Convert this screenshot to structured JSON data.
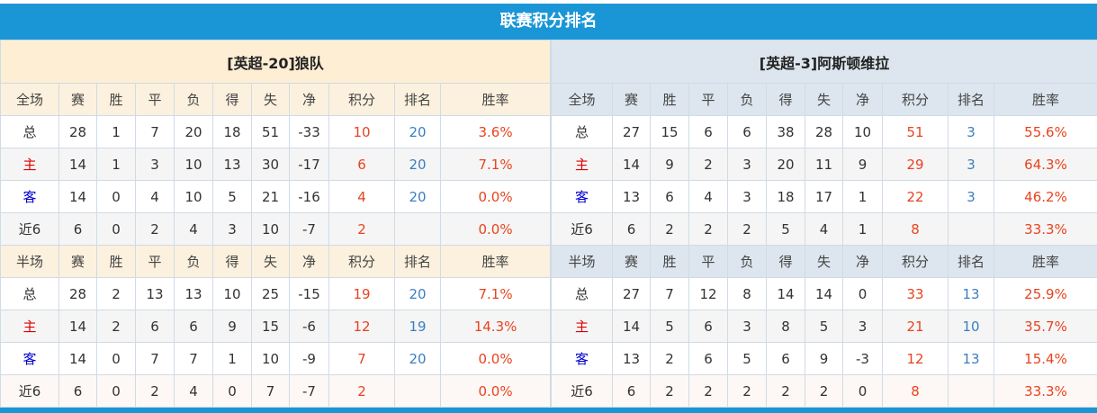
{
  "title": "联赛积分排名",
  "columns_full": [
    "全场",
    "赛",
    "胜",
    "平",
    "负",
    "得",
    "失",
    "净",
    "积分",
    "排名",
    "胜率"
  ],
  "columns_half": [
    "半场",
    "赛",
    "胜",
    "平",
    "负",
    "得",
    "失",
    "净",
    "积分",
    "排名",
    "胜率"
  ],
  "colors": {
    "accent": "#1a96d6",
    "points": "#e8431f",
    "rank": "#3a7fc1",
    "home": "#e00000",
    "away": "#0000d0"
  },
  "teams": [
    {
      "name": "[英超-20]狼队",
      "full": [
        [
          "总",
          "28",
          "1",
          "7",
          "20",
          "18",
          "51",
          "-33",
          "10",
          "20",
          "3.6%"
        ],
        [
          "主",
          "14",
          "1",
          "3",
          "10",
          "13",
          "30",
          "-17",
          "6",
          "20",
          "7.1%"
        ],
        [
          "客",
          "14",
          "0",
          "4",
          "10",
          "5",
          "21",
          "-16",
          "4",
          "20",
          "0.0%"
        ],
        [
          "近6",
          "6",
          "0",
          "2",
          "4",
          "3",
          "10",
          "-7",
          "2",
          "",
          "0.0%"
        ]
      ],
      "half": [
        [
          "总",
          "28",
          "2",
          "13",
          "13",
          "10",
          "25",
          "-15",
          "19",
          "20",
          "7.1%"
        ],
        [
          "主",
          "14",
          "2",
          "6",
          "6",
          "9",
          "15",
          "-6",
          "12",
          "19",
          "14.3%"
        ],
        [
          "客",
          "14",
          "0",
          "7",
          "7",
          "1",
          "10",
          "-9",
          "7",
          "20",
          "0.0%"
        ],
        [
          "近6",
          "6",
          "0",
          "2",
          "4",
          "0",
          "7",
          "-7",
          "2",
          "",
          "0.0%"
        ]
      ]
    },
    {
      "name": "[英超-3]阿斯顿维拉",
      "full": [
        [
          "总",
          "27",
          "15",
          "6",
          "6",
          "38",
          "28",
          "10",
          "51",
          "3",
          "55.6%"
        ],
        [
          "主",
          "14",
          "9",
          "2",
          "3",
          "20",
          "11",
          "9",
          "29",
          "3",
          "64.3%"
        ],
        [
          "客",
          "13",
          "6",
          "4",
          "3",
          "18",
          "17",
          "1",
          "22",
          "3",
          "46.2%"
        ],
        [
          "近6",
          "6",
          "2",
          "2",
          "2",
          "5",
          "4",
          "1",
          "8",
          "",
          "33.3%"
        ]
      ],
      "half": [
        [
          "总",
          "27",
          "7",
          "12",
          "8",
          "14",
          "14",
          "0",
          "33",
          "13",
          "25.9%"
        ],
        [
          "主",
          "14",
          "5",
          "6",
          "3",
          "8",
          "5",
          "3",
          "21",
          "10",
          "35.7%"
        ],
        [
          "客",
          "13",
          "2",
          "6",
          "5",
          "6",
          "9",
          "-3",
          "12",
          "13",
          "15.4%"
        ],
        [
          "近6",
          "6",
          "2",
          "2",
          "2",
          "2",
          "2",
          "0",
          "8",
          "",
          "33.3%"
        ]
      ]
    }
  ]
}
